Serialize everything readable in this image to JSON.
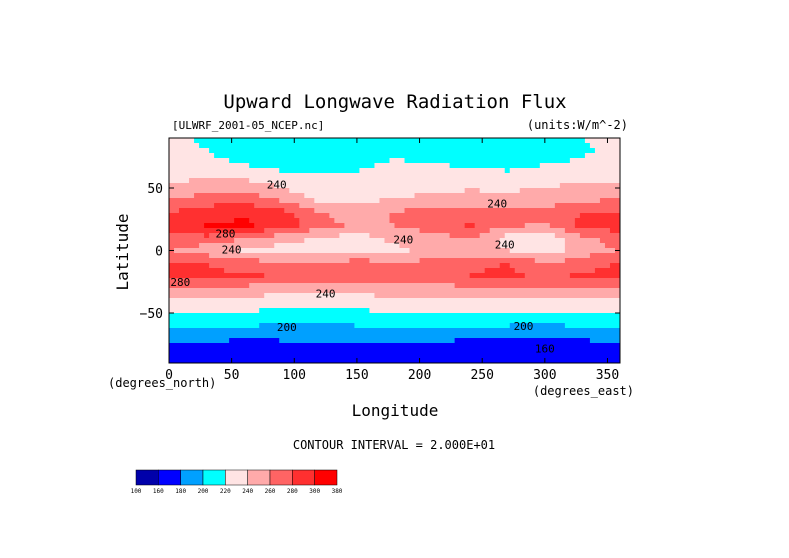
{
  "chart_data": {
    "type": "heatmap",
    "title": "Upward Longwave Radiation Flux",
    "source_label": "[ULWRF_2001-05_NCEP.nc]",
    "units_label": "(units:W/m^-2)",
    "xlabel": "Longitude",
    "ylabel": "Latitude",
    "x_unit_label": "(degrees_east)",
    "y_unit_label": "(degrees_north)",
    "xlim": [
      0,
      360
    ],
    "ylim": [
      -90,
      90
    ],
    "x_ticks": [
      0,
      50,
      100,
      150,
      200,
      250,
      300,
      350
    ],
    "y_ticks": [
      50,
      0,
      -50
    ],
    "contour_interval_label": "CONTOUR INTERVAL = 2.000E+01",
    "colorbar": {
      "levels": [
        "100",
        "160",
        "180",
        "200",
        "220",
        "240",
        "260",
        "280",
        "300",
        "380"
      ],
      "colors": [
        "#0000aa",
        "#0000ff",
        "#00a0ff",
        "#00ffff",
        "#ffe4e4",
        "#ffaaaa",
        "#ff6464",
        "#ff3030",
        "#ff0000"
      ]
    },
    "contour_labels": [
      {
        "text": "240",
        "lon": 86,
        "lat": 52
      },
      {
        "text": "240",
        "lon": 262,
        "lat": 37
      },
      {
        "text": "280",
        "lon": 45,
        "lat": 13
      },
      {
        "text": "240",
        "lon": 187,
        "lat": 8
      },
      {
        "text": "240",
        "lon": 268,
        "lat": 4
      },
      {
        "text": "240",
        "lon": 50,
        "lat": 0
      },
      {
        "text": "280",
        "lon": 9,
        "lat": -26
      },
      {
        "text": "240",
        "lon": 125,
        "lat": -35
      },
      {
        "text": "200",
        "lon": 94,
        "lat": -62
      },
      {
        "text": "200",
        "lon": 283,
        "lat": -61
      },
      {
        "text": "160",
        "lon": 300,
        "lat": -79
      }
    ],
    "data_description_grid": {
      "lat": [
        90,
        80,
        70,
        60,
        50,
        40,
        30,
        20,
        10,
        0,
        -10,
        -20,
        -30,
        -40,
        -50,
        -60,
        -70,
        -80,
        -90
      ],
      "lon": [
        0,
        30,
        60,
        90,
        120,
        150,
        180,
        210,
        240,
        270,
        300,
        330,
        360
      ],
      "values": [
        [
          222,
          218,
          215,
          212,
          210,
          215,
          220,
          214,
          212,
          210,
          215,
          220,
          222
        ],
        [
          225,
          220,
          212,
          208,
          205,
          210,
          215,
          212,
          210,
          208,
          212,
          218,
          225
        ],
        [
          228,
          225,
          218,
          212,
          210,
          215,
          222,
          220,
          215,
          212,
          218,
          222,
          228
        ],
        [
          232,
          238,
          232,
          224,
          220,
          222,
          228,
          230,
          228,
          225,
          230,
          234,
          232
        ],
        [
          244,
          250,
          255,
          240,
          228,
          226,
          232,
          235,
          238,
          236,
          240,
          246,
          244
        ],
        [
          262,
          270,
          275,
          258,
          238,
          236,
          242,
          246,
          250,
          248,
          252,
          258,
          262
        ],
        [
          282,
          292,
          300,
          286,
          262,
          250,
          262,
          270,
          275,
          272,
          265,
          280,
          282
        ],
        [
          292,
          300,
          302,
          292,
          268,
          255,
          260,
          270,
          282,
          262,
          258,
          285,
          292
        ],
        [
          270,
          275,
          262,
          248,
          238,
          232,
          244,
          252,
          262,
          232,
          225,
          255,
          270
        ],
        [
          262,
          248,
          238,
          232,
          228,
          226,
          236,
          246,
          250,
          240,
          228,
          250,
          262
        ],
        [
          282,
          280,
          268,
          262,
          262,
          270,
          262,
          265,
          275,
          280,
          262,
          268,
          282
        ],
        [
          288,
          285,
          282,
          278,
          275,
          270,
          268,
          270,
          280,
          285,
          275,
          282,
          288
        ],
        [
          262,
          262,
          255,
          250,
          245,
          248,
          252,
          252,
          258,
          262,
          258,
          262,
          262
        ],
        [
          238,
          236,
          233,
          230,
          230,
          232,
          235,
          236,
          238,
          238,
          240,
          238,
          238
        ],
        [
          222,
          220,
          218,
          216,
          215,
          216,
          218,
          220,
          222,
          222,
          220,
          222,
          222
        ],
        [
          205,
          206,
          202,
          196,
          198,
          200,
          202,
          205,
          205,
          200,
          198,
          202,
          205
        ],
        [
          185,
          184,
          182,
          182,
          185,
          186,
          184,
          186,
          182,
          175,
          180,
          182,
          185
        ],
        [
          172,
          168,
          170,
          172,
          175,
          172,
          170,
          168,
          165,
          162,
          165,
          168,
          172
        ],
        [
          170,
          168,
          170,
          170,
          172,
          170,
          168,
          168,
          165,
          162,
          165,
          168,
          170
        ]
      ]
    }
  }
}
